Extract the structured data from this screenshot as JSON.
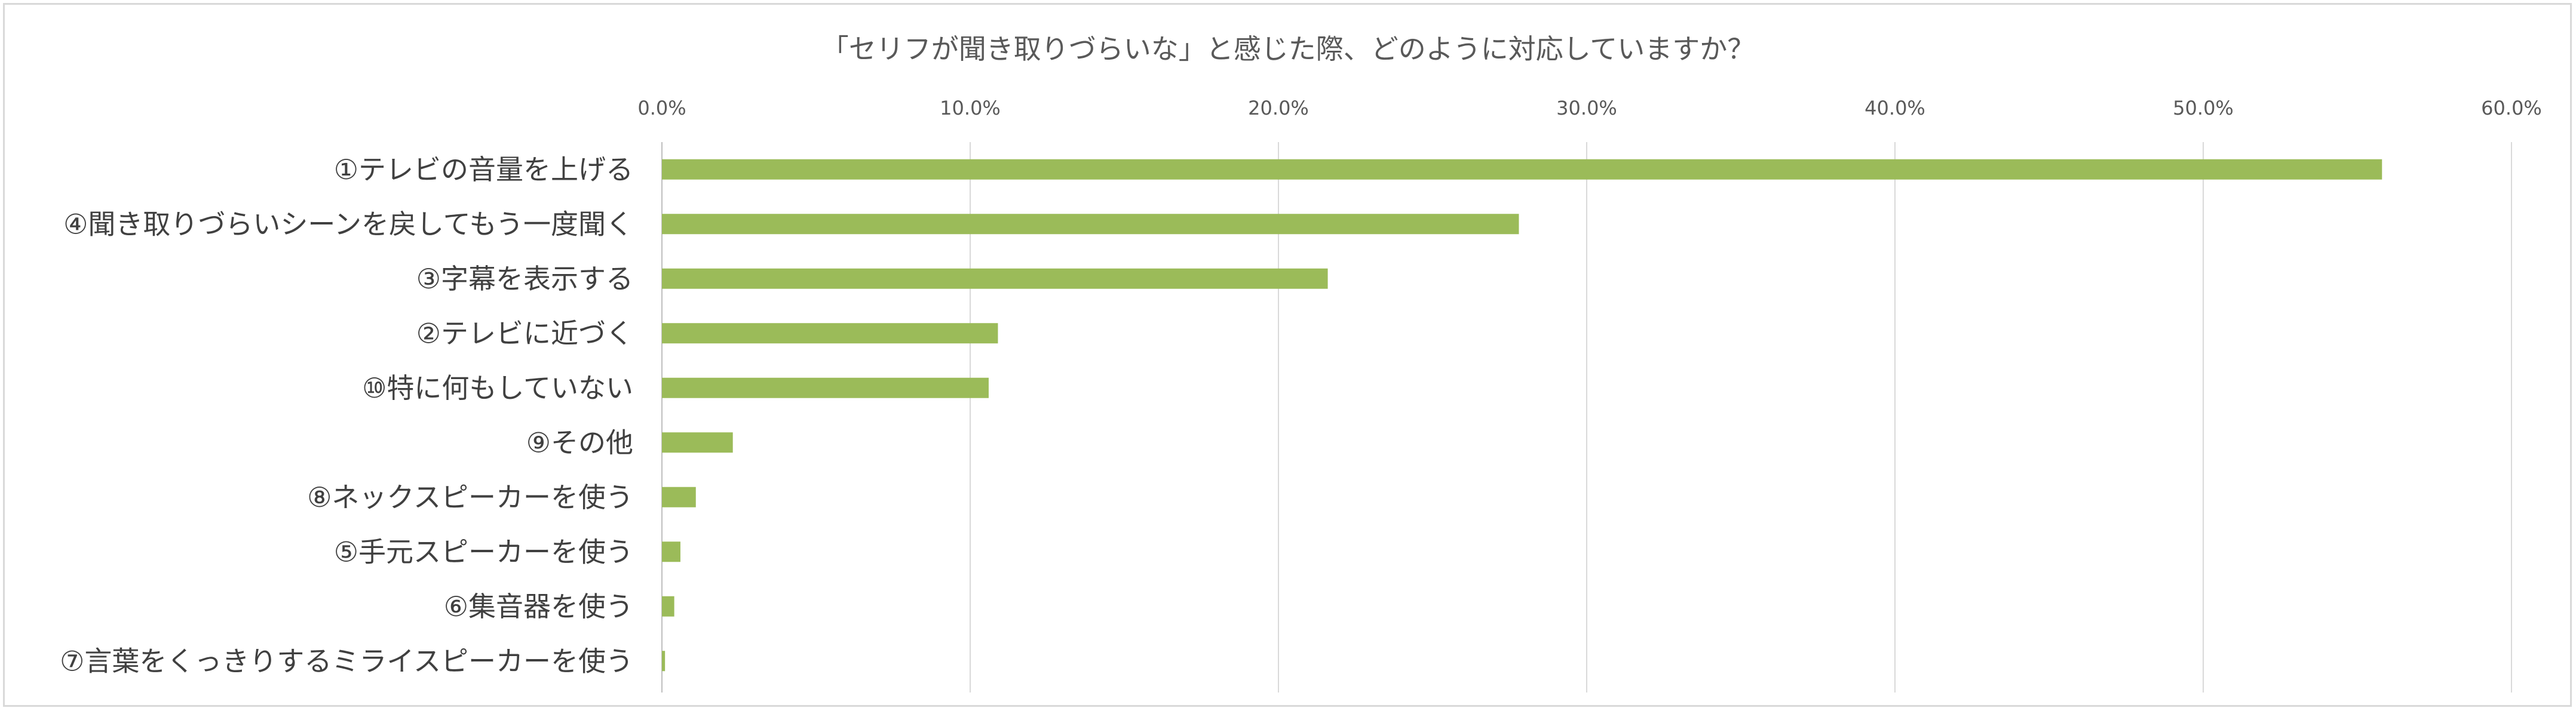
{
  "chart_data": {
    "type": "bar",
    "orientation": "horizontal",
    "title": "「セリフが聞き取りづらいな」と感じた際、どのように対応していますか？",
    "xlabel": "",
    "ylabel": "",
    "xlim": [
      0,
      60
    ],
    "x_ticks": [
      "0.0%",
      "10.0%",
      "20.0%",
      "30.0%",
      "40.0%",
      "50.0%",
      "60.0%"
    ],
    "grid": true,
    "legend": "none",
    "bar_color": "#9bbb59",
    "categories": [
      "①テレビの音量を上げる",
      "④聞き取りづらいシーンを戻してもう一度聞く",
      "③字幕を表示する",
      "②テレビに近づく",
      "⑩特に何もしていない",
      "⑨その他",
      "⑧ネックスピーカーを使う",
      "⑤手元スピーカーを使う",
      "⑥集音器を使う",
      "⑦言葉をくっきりするミライスピーカーを使う"
    ],
    "values": [
      55.8,
      27.8,
      21.6,
      10.9,
      10.6,
      2.3,
      1.1,
      0.6,
      0.4,
      0.1
    ]
  }
}
